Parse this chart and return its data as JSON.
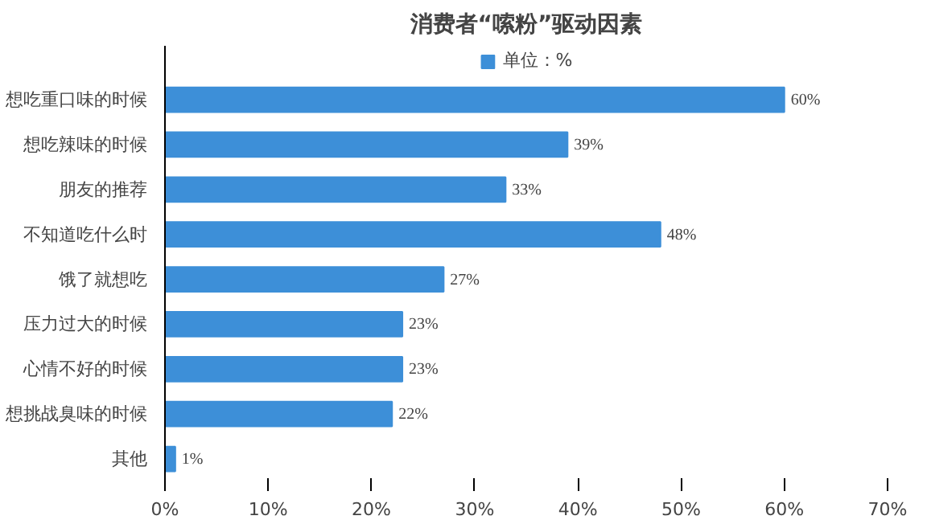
{
  "chart_data": {
    "type": "bar",
    "orientation": "horizontal",
    "title": "消费者“嗦粉”驱动因素",
    "categories": [
      "想吃重口味的时候",
      "想吃辣味的时候",
      "朋友的推荐",
      "不知道吃什么时",
      "饿了就想吃",
      "压力过大的时候",
      "心情不好的时候",
      "想挑战臭味的时候",
      "其他"
    ],
    "series": [
      {
        "name": "单位：%",
        "color": "#3d8fd8",
        "values": [
          60,
          39,
          33,
          48,
          27,
          23,
          23,
          22,
          1
        ],
        "value_labels": [
          "60%",
          "39%",
          "33%",
          "48%",
          "27%",
          "23%",
          "23%",
          "22%",
          "1%"
        ]
      }
    ],
    "xlim": [
      0,
      70
    ],
    "xticks": [
      {
        "value": 0,
        "label": "0%"
      },
      {
        "value": 10,
        "label": "10%"
      },
      {
        "value": 20,
        "label": "20%"
      },
      {
        "value": 30,
        "label": "30%"
      },
      {
        "value": 40,
        "label": "40%"
      },
      {
        "value": 50,
        "label": "50%"
      },
      {
        "value": 60,
        "label": "60%"
      },
      {
        "value": 70,
        "label": "70%"
      }
    ],
    "grid": false,
    "legend": "top"
  }
}
